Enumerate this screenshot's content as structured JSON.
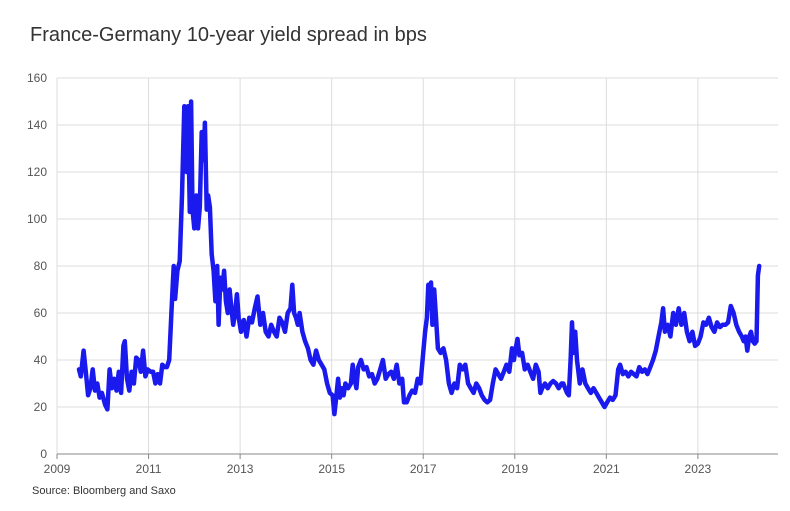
{
  "chart_data": {
    "type": "line",
    "title": "France-Germany 10-year yield spread in bps",
    "source": "Source: Bloomberg and Saxo",
    "xlabel": "",
    "ylabel": "",
    "xlim": [
      2009.0,
      2024.75
    ],
    "ylim": [
      0,
      160
    ],
    "y_ticks": [
      0,
      20,
      40,
      60,
      80,
      100,
      120,
      140,
      160
    ],
    "x_ticks": [
      2009,
      2011,
      2013,
      2015,
      2017,
      2019,
      2021,
      2023
    ],
    "x_tick_labels": [
      "2009",
      "2011",
      "2013",
      "2015",
      "2017",
      "2019",
      "2021",
      "2023"
    ],
    "grid": true,
    "line_color": "#1a1aee",
    "series": [
      {
        "name": "",
        "points": [
          [
            2009.48,
            36
          ],
          [
            2009.52,
            33
          ],
          [
            2009.58,
            44
          ],
          [
            2009.63,
            35
          ],
          [
            2009.68,
            25
          ],
          [
            2009.73,
            28
          ],
          [
            2009.78,
            36
          ],
          [
            2009.83,
            27
          ],
          [
            2009.88,
            30
          ],
          [
            2009.93,
            24
          ],
          [
            2009.98,
            26
          ],
          [
            2010.05,
            21
          ],
          [
            2010.1,
            19
          ],
          [
            2010.15,
            36
          ],
          [
            2010.2,
            28
          ],
          [
            2010.25,
            32
          ],
          [
            2010.3,
            27
          ],
          [
            2010.35,
            35
          ],
          [
            2010.4,
            26
          ],
          [
            2010.45,
            46
          ],
          [
            2010.48,
            48
          ],
          [
            2010.53,
            32
          ],
          [
            2010.58,
            27
          ],
          [
            2010.63,
            35
          ],
          [
            2010.68,
            30
          ],
          [
            2010.73,
            41
          ],
          [
            2010.78,
            40
          ],
          [
            2010.83,
            35
          ],
          [
            2010.88,
            44
          ],
          [
            2010.93,
            33
          ],
          [
            2010.98,
            36
          ],
          [
            2011.05,
            35
          ],
          [
            2011.1,
            35
          ],
          [
            2011.15,
            30
          ],
          [
            2011.2,
            34
          ],
          [
            2011.25,
            30
          ],
          [
            2011.3,
            38
          ],
          [
            2011.35,
            37
          ],
          [
            2011.4,
            37
          ],
          [
            2011.45,
            40
          ],
          [
            2011.5,
            60
          ],
          [
            2011.55,
            80
          ],
          [
            2011.58,
            66
          ],
          [
            2011.63,
            78
          ],
          [
            2011.68,
            82
          ],
          [
            2011.73,
            110
          ],
          [
            2011.78,
            148
          ],
          [
            2011.8,
            140
          ],
          [
            2011.83,
            120
          ],
          [
            2011.86,
            148
          ],
          [
            2011.9,
            103
          ],
          [
            2011.93,
            150
          ],
          [
            2011.96,
            104
          ],
          [
            2012.0,
            96
          ],
          [
            2012.04,
            110
          ],
          [
            2012.08,
            96
          ],
          [
            2012.12,
            105
          ],
          [
            2012.16,
            137
          ],
          [
            2012.2,
            125
          ],
          [
            2012.23,
            141
          ],
          [
            2012.27,
            104
          ],
          [
            2012.3,
            110
          ],
          [
            2012.34,
            105
          ],
          [
            2012.38,
            85
          ],
          [
            2012.42,
            78
          ],
          [
            2012.46,
            65
          ],
          [
            2012.5,
            80
          ],
          [
            2012.53,
            55
          ],
          [
            2012.57,
            75
          ],
          [
            2012.61,
            70
          ],
          [
            2012.65,
            78
          ],
          [
            2012.69,
            65
          ],
          [
            2012.73,
            60
          ],
          [
            2012.77,
            70
          ],
          [
            2012.81,
            62
          ],
          [
            2012.85,
            55
          ],
          [
            2012.89,
            60
          ],
          [
            2012.93,
            68
          ],
          [
            2012.97,
            58
          ],
          [
            2013.02,
            52
          ],
          [
            2013.08,
            57
          ],
          [
            2013.14,
            50
          ],
          [
            2013.2,
            58
          ],
          [
            2013.26,
            56
          ],
          [
            2013.32,
            62
          ],
          [
            2013.38,
            67
          ],
          [
            2013.44,
            55
          ],
          [
            2013.5,
            60
          ],
          [
            2013.56,
            52
          ],
          [
            2013.62,
            50
          ],
          [
            2013.68,
            55
          ],
          [
            2013.74,
            52
          ],
          [
            2013.8,
            50
          ],
          [
            2013.86,
            58
          ],
          [
            2013.92,
            56
          ],
          [
            2013.98,
            52
          ],
          [
            2014.04,
            60
          ],
          [
            2014.1,
            62
          ],
          [
            2014.14,
            72
          ],
          [
            2014.18,
            60
          ],
          [
            2014.22,
            58
          ],
          [
            2014.26,
            55
          ],
          [
            2014.3,
            60
          ],
          [
            2014.36,
            52
          ],
          [
            2014.42,
            48
          ],
          [
            2014.48,
            45
          ],
          [
            2014.54,
            40
          ],
          [
            2014.6,
            38
          ],
          [
            2014.66,
            44
          ],
          [
            2014.72,
            40
          ],
          [
            2014.78,
            38
          ],
          [
            2014.84,
            36
          ],
          [
            2014.9,
            30
          ],
          [
            2014.96,
            26
          ],
          [
            2015.02,
            25
          ],
          [
            2015.06,
            17
          ],
          [
            2015.1,
            24
          ],
          [
            2015.14,
            32
          ],
          [
            2015.18,
            24
          ],
          [
            2015.22,
            28
          ],
          [
            2015.26,
            25
          ],
          [
            2015.3,
            30
          ],
          [
            2015.36,
            28
          ],
          [
            2015.42,
            30
          ],
          [
            2015.46,
            38
          ],
          [
            2015.5,
            32
          ],
          [
            2015.54,
            28
          ],
          [
            2015.58,
            37
          ],
          [
            2015.64,
            40
          ],
          [
            2015.7,
            36
          ],
          [
            2015.76,
            37
          ],
          [
            2015.82,
            33
          ],
          [
            2015.88,
            34
          ],
          [
            2015.94,
            30
          ],
          [
            2016.0,
            32
          ],
          [
            2016.06,
            36
          ],
          [
            2016.12,
            40
          ],
          [
            2016.18,
            32
          ],
          [
            2016.24,
            34
          ],
          [
            2016.3,
            35
          ],
          [
            2016.36,
            32
          ],
          [
            2016.42,
            38
          ],
          [
            2016.48,
            30
          ],
          [
            2016.54,
            32
          ],
          [
            2016.58,
            22
          ],
          [
            2016.64,
            22
          ],
          [
            2016.7,
            25
          ],
          [
            2016.76,
            27
          ],
          [
            2016.82,
            26
          ],
          [
            2016.88,
            32
          ],
          [
            2016.94,
            30
          ],
          [
            2017.0,
            43
          ],
          [
            2017.04,
            52
          ],
          [
            2017.08,
            58
          ],
          [
            2017.11,
            72
          ],
          [
            2017.14,
            62
          ],
          [
            2017.17,
            73
          ],
          [
            2017.2,
            55
          ],
          [
            2017.24,
            70
          ],
          [
            2017.28,
            58
          ],
          [
            2017.32,
            45
          ],
          [
            2017.38,
            43
          ],
          [
            2017.44,
            45
          ],
          [
            2017.5,
            40
          ],
          [
            2017.56,
            30
          ],
          [
            2017.62,
            26
          ],
          [
            2017.68,
            30
          ],
          [
            2017.74,
            28
          ],
          [
            2017.8,
            38
          ],
          [
            2017.86,
            36
          ],
          [
            2017.92,
            38
          ],
          [
            2017.98,
            30
          ],
          [
            2018.04,
            28
          ],
          [
            2018.1,
            26
          ],
          [
            2018.16,
            30
          ],
          [
            2018.22,
            28
          ],
          [
            2018.28,
            25
          ],
          [
            2018.34,
            23
          ],
          [
            2018.4,
            22
          ],
          [
            2018.46,
            23
          ],
          [
            2018.52,
            30
          ],
          [
            2018.58,
            36
          ],
          [
            2018.64,
            34
          ],
          [
            2018.7,
            32
          ],
          [
            2018.76,
            35
          ],
          [
            2018.82,
            38
          ],
          [
            2018.88,
            35
          ],
          [
            2018.94,
            45
          ],
          [
            2018.98,
            40
          ],
          [
            2019.02,
            45
          ],
          [
            2019.06,
            49
          ],
          [
            2019.1,
            42
          ],
          [
            2019.16,
            43
          ],
          [
            2019.22,
            36
          ],
          [
            2019.28,
            38
          ],
          [
            2019.34,
            35
          ],
          [
            2019.4,
            32
          ],
          [
            2019.46,
            38
          ],
          [
            2019.52,
            35
          ],
          [
            2019.56,
            26
          ],
          [
            2019.6,
            28
          ],
          [
            2019.66,
            30
          ],
          [
            2019.72,
            28
          ],
          [
            2019.78,
            30
          ],
          [
            2019.84,
            31
          ],
          [
            2019.9,
            30
          ],
          [
            2019.96,
            28
          ],
          [
            2020.02,
            30
          ],
          [
            2020.06,
            30
          ],
          [
            2020.1,
            28
          ],
          [
            2020.14,
            26
          ],
          [
            2020.18,
            25
          ],
          [
            2020.22,
            40
          ],
          [
            2020.25,
            56
          ],
          [
            2020.28,
            43
          ],
          [
            2020.32,
            52
          ],
          [
            2020.36,
            40
          ],
          [
            2020.42,
            30
          ],
          [
            2020.48,
            36
          ],
          [
            2020.54,
            30
          ],
          [
            2020.6,
            28
          ],
          [
            2020.66,
            26
          ],
          [
            2020.72,
            28
          ],
          [
            2020.78,
            26
          ],
          [
            2020.84,
            24
          ],
          [
            2020.9,
            22
          ],
          [
            2020.96,
            20
          ],
          [
            2021.02,
            22
          ],
          [
            2021.08,
            24
          ],
          [
            2021.14,
            23
          ],
          [
            2021.2,
            25
          ],
          [
            2021.26,
            36
          ],
          [
            2021.3,
            38
          ],
          [
            2021.36,
            34
          ],
          [
            2021.42,
            35
          ],
          [
            2021.48,
            33
          ],
          [
            2021.54,
            35
          ],
          [
            2021.6,
            34
          ],
          [
            2021.66,
            33
          ],
          [
            2021.72,
            37
          ],
          [
            2021.78,
            35
          ],
          [
            2021.84,
            36
          ],
          [
            2021.9,
            34
          ],
          [
            2021.96,
            37
          ],
          [
            2022.02,
            40
          ],
          [
            2022.08,
            44
          ],
          [
            2022.14,
            50
          ],
          [
            2022.2,
            56
          ],
          [
            2022.24,
            62
          ],
          [
            2022.28,
            52
          ],
          [
            2022.34,
            55
          ],
          [
            2022.4,
            50
          ],
          [
            2022.46,
            60
          ],
          [
            2022.52,
            55
          ],
          [
            2022.58,
            62
          ],
          [
            2022.64,
            55
          ],
          [
            2022.7,
            60
          ],
          [
            2022.76,
            52
          ],
          [
            2022.82,
            48
          ],
          [
            2022.88,
            52
          ],
          [
            2022.94,
            46
          ],
          [
            2023.0,
            47
          ],
          [
            2023.06,
            50
          ],
          [
            2023.12,
            56
          ],
          [
            2023.18,
            55
          ],
          [
            2023.24,
            58
          ],
          [
            2023.3,
            54
          ],
          [
            2023.36,
            52
          ],
          [
            2023.42,
            56
          ],
          [
            2023.48,
            54
          ],
          [
            2023.54,
            55
          ],
          [
            2023.6,
            55
          ],
          [
            2023.66,
            56
          ],
          [
            2023.72,
            63
          ],
          [
            2023.78,
            60
          ],
          [
            2023.84,
            55
          ],
          [
            2023.9,
            52
          ],
          [
            2023.96,
            50
          ],
          [
            2024.0,
            48
          ],
          [
            2024.04,
            50
          ],
          [
            2024.08,
            44
          ],
          [
            2024.12,
            50
          ],
          [
            2024.16,
            52
          ],
          [
            2024.2,
            48
          ],
          [
            2024.24,
            47
          ],
          [
            2024.28,
            48
          ],
          [
            2024.31,
            76
          ],
          [
            2024.34,
            80
          ]
        ]
      }
    ]
  }
}
